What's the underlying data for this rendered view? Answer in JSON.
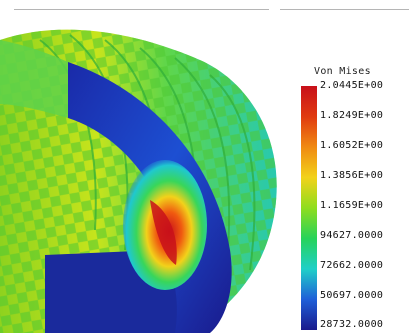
{
  "window": {
    "view": "FEA contour plot"
  },
  "legend": {
    "title": "Von Mises",
    "labels": [
      "2.0445E+00",
      "1.8249E+00",
      "1.6052E+00",
      "1.3856E+00",
      "1.1659E+00",
      "94627.0000",
      "72662.0000",
      "50697.0000",
      "28732.0000"
    ],
    "colors": [
      "#c8101a",
      "#e03a10",
      "#f08a12",
      "#f2d21a",
      "#8fdd1e",
      "#27d35a",
      "#1fd0c8",
      "#1f5fd8",
      "#1a1a8c"
    ]
  }
}
